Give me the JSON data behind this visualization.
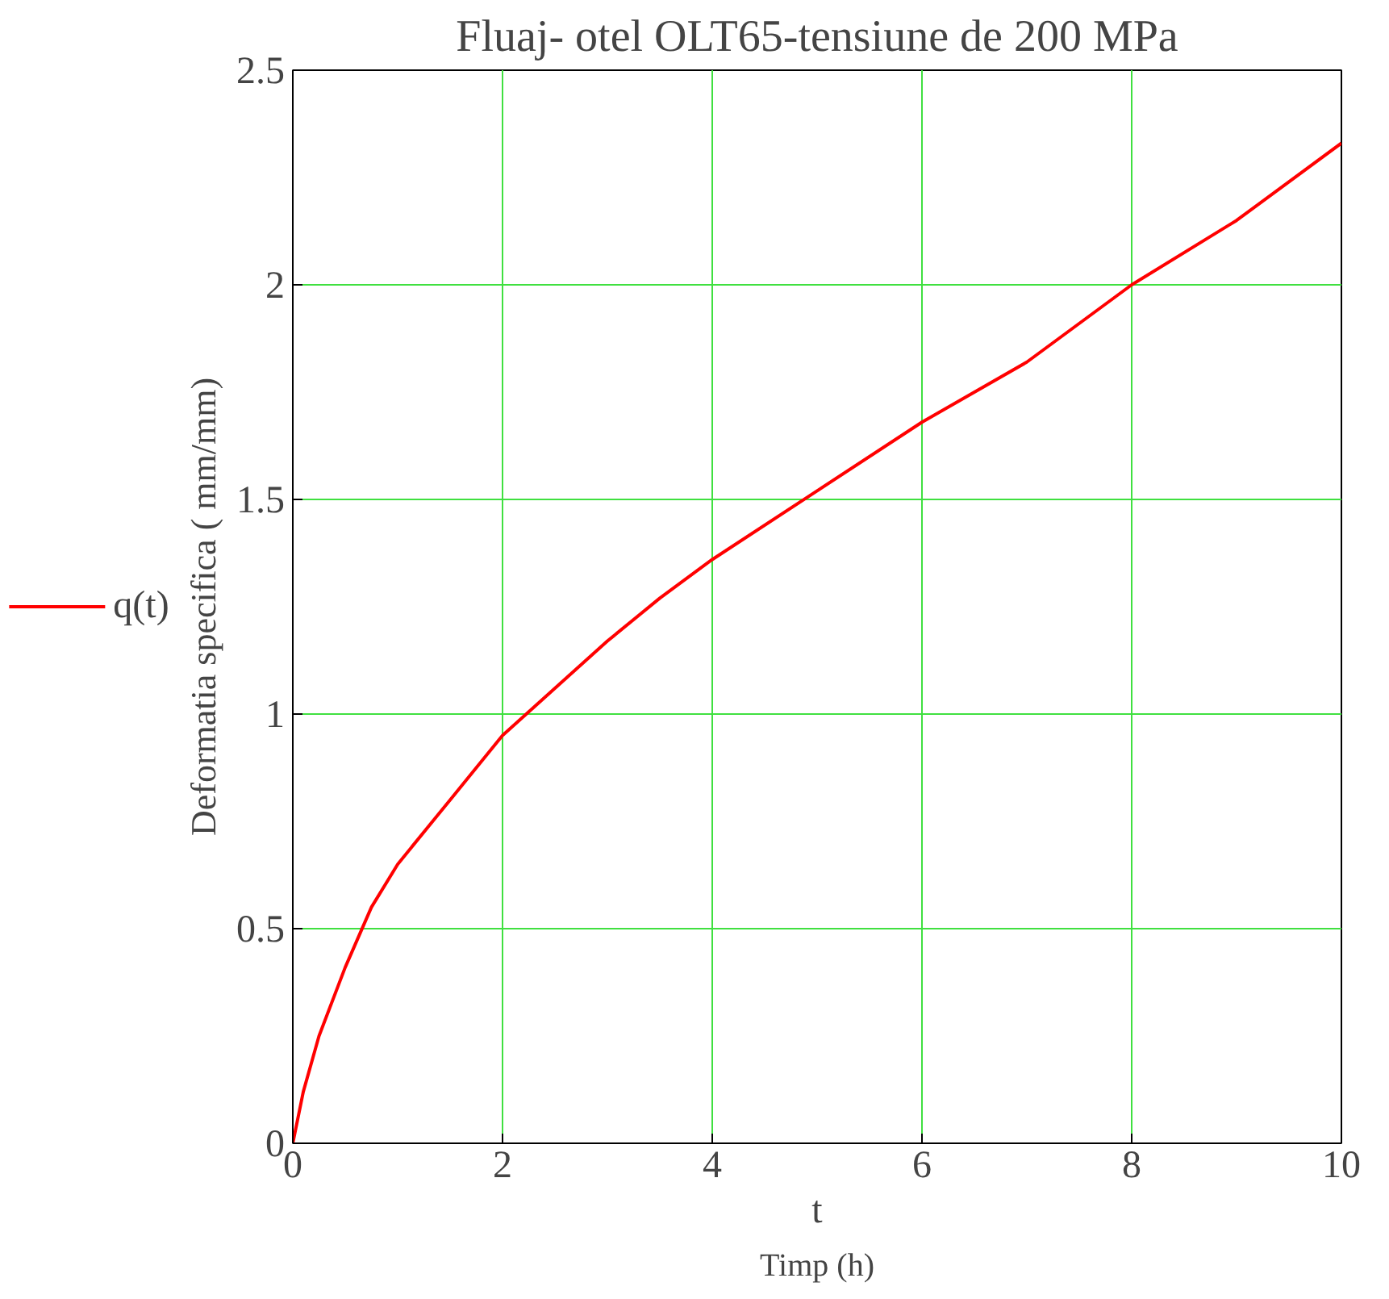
{
  "chart_data": {
    "type": "line",
    "title": "Fluaj- otel OLT65-tensiune de 200 MPa",
    "xlabel": "t",
    "ylabel": "Deformatia specifica ( mm/mm)",
    "annotations": [
      "Timp (h)"
    ],
    "x": [
      0,
      0.1,
      0.25,
      0.5,
      0.75,
      1,
      1.5,
      2,
      2.5,
      3,
      3.5,
      4,
      5,
      6,
      7,
      8,
      9,
      10
    ],
    "series": [
      {
        "name": "q(t)",
        "color": "#ff0000",
        "values": [
          0,
          0.12,
          0.25,
          0.41,
          0.55,
          0.65,
          0.8,
          0.95,
          1.06,
          1.17,
          1.27,
          1.36,
          1.52,
          1.68,
          1.82,
          2.0,
          2.15,
          2.33
        ]
      }
    ],
    "xlim": [
      0,
      10
    ],
    "ylim": [
      0,
      2.5
    ],
    "xticks": [
      0,
      2,
      4,
      6,
      8,
      10
    ],
    "yticks": [
      0,
      0.5,
      1,
      1.5,
      2,
      2.5
    ],
    "grid": true,
    "legend": "left",
    "line_style": "solid",
    "marker": "none"
  }
}
